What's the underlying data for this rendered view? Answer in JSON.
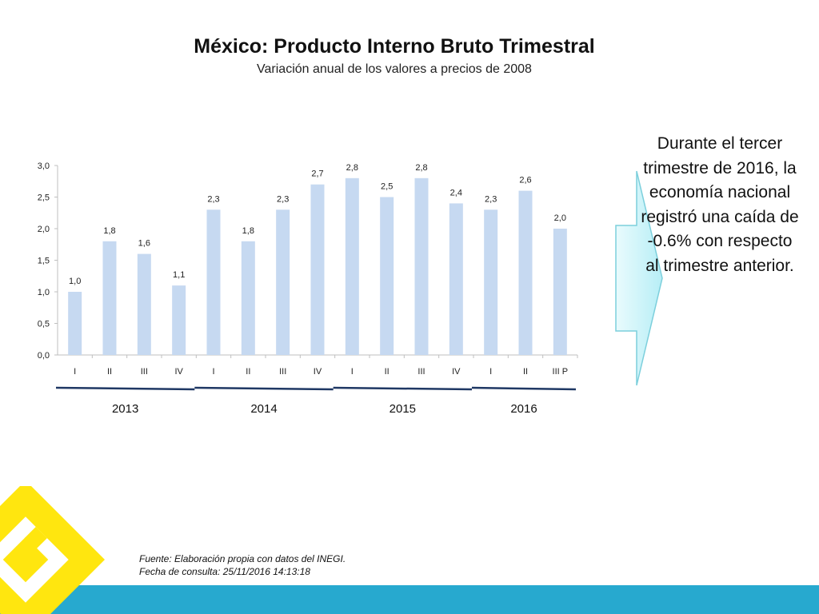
{
  "title": "México: Producto Interno Bruto Trimestral",
  "subtitle": "Variación anual de los valores a precios de 2008",
  "note": "Durante el tercer trimestre de 2016, la economía nacional registró una caída de -0.6% con respecto al trimestre anterior.",
  "source_line1": "Fuente: Elaboración propia con datos del INEGI.",
  "source_line2": "Fecha de consulta: 25/11/2016 14:13:18",
  "colors": {
    "bar": "#c6d9f1",
    "band": "#27a9cf",
    "logo": "#ffe60f",
    "year_line": "#1f3864"
  },
  "chart_data": {
    "type": "bar",
    "categories": [
      "I",
      "II",
      "III",
      "IV",
      "I",
      "II",
      "III",
      "IV",
      "I",
      "II",
      "III",
      "IV",
      "I",
      "II",
      "III P"
    ],
    "values": [
      1.0,
      1.8,
      1.6,
      1.1,
      2.3,
      1.8,
      2.3,
      2.7,
      2.8,
      2.5,
      2.8,
      2.4,
      2.3,
      2.6,
      2.0
    ],
    "value_labels": [
      "1,0",
      "1,8",
      "1,6",
      "1,1",
      "2,3",
      "1,8",
      "2,3",
      "2,7",
      "2,8",
      "2,5",
      "2,8",
      "2,4",
      "2,3",
      "2,6",
      "2,0"
    ],
    "ylim": [
      0,
      3
    ],
    "yticks": [
      "0,0",
      "0,5",
      "1,0",
      "1,5",
      "2,0",
      "2,5",
      "3,0"
    ],
    "groups": [
      {
        "label": "2013",
        "start": 0,
        "end": 3
      },
      {
        "label": "2014",
        "start": 4,
        "end": 7
      },
      {
        "label": "2015",
        "start": 8,
        "end": 11
      },
      {
        "label": "2016",
        "start": 12,
        "end": 14
      }
    ]
  }
}
